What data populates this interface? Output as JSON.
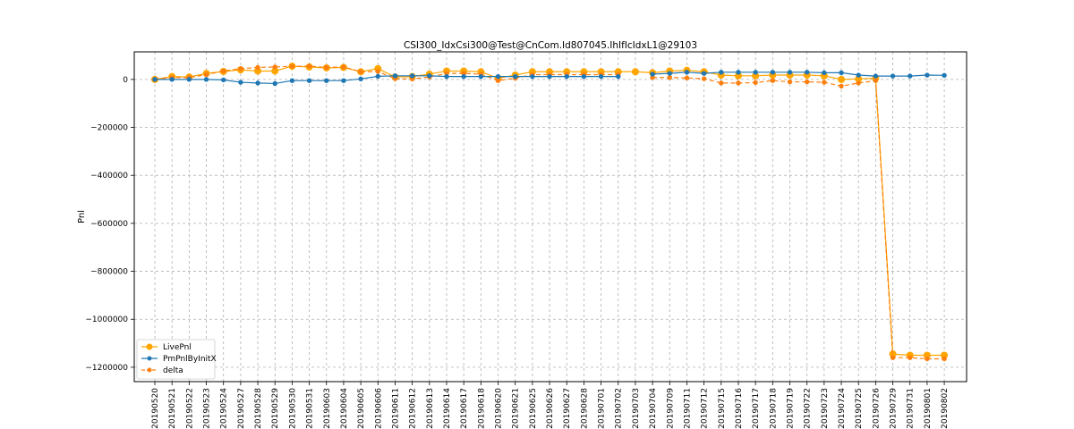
{
  "chart_data": {
    "type": "line",
    "title": "CSI300_IdxCsi300@Test@CnCom.Id807045.IhIfIcIdxL1@29103",
    "xlabel": "",
    "ylabel": "Pnl",
    "ylim": [
      -1260000,
      115000
    ],
    "yticks": [
      0,
      -200000,
      -400000,
      -600000,
      -800000,
      -1000000,
      -1200000
    ],
    "ytick_labels": [
      "0",
      "−200000",
      "−400000",
      "−600000",
      "−800000",
      "−1000000",
      "−1200000"
    ],
    "grid": true,
    "legend_position": "lower-left",
    "categories": [
      "20190520",
      "20190521",
      "20190522",
      "20190523",
      "20190524",
      "20190527",
      "20190528",
      "20190529",
      "20190530",
      "20190531",
      "20190603",
      "20190604",
      "20190605",
      "20190606",
      "20190611",
      "20190612",
      "20190613",
      "20190614",
      "20190617",
      "20190618",
      "20190620",
      "20190621",
      "20190625",
      "20190626",
      "20190627",
      "20190628",
      "20190701",
      "20190702",
      "20190703",
      "20190704",
      "20190709",
      "20190711",
      "20190712",
      "20190715",
      "20190716",
      "20190717",
      "20190718",
      "20190719",
      "20190722",
      "20190723",
      "20190724",
      "20190725",
      "20190726",
      "20190729",
      "20190731",
      "20190801",
      "20190802"
    ],
    "series": [
      {
        "name": "LivePnl",
        "color": "#ffa500",
        "style": "solid",
        "marker": "large-circle",
        "values": [
          0,
          12000,
          10000,
          25000,
          33000,
          40000,
          35000,
          35000,
          55000,
          52000,
          48000,
          50000,
          32000,
          45000,
          10000,
          12000,
          22000,
          35000,
          35000,
          32000,
          5000,
          18000,
          32000,
          32000,
          32000,
          32000,
          32000,
          32000,
          32000,
          28000,
          35000,
          38000,
          32000,
          18000,
          15000,
          15000,
          18000,
          18000,
          18000,
          15000,
          0,
          2000,
          5000,
          -1145000,
          -1150000,
          -1150000,
          -1150000
        ]
      },
      {
        "name": "PmPnlByInitX",
        "color": "#1f77b4",
        "style": "solid",
        "marker": "small-circle",
        "values": [
          0,
          0,
          0,
          0,
          -2000,
          -12000,
          -15000,
          -17000,
          -5000,
          -5000,
          -5000,
          -5000,
          2000,
          13000,
          15000,
          15000,
          15000,
          12000,
          12000,
          12000,
          12000,
          12000,
          12000,
          12000,
          12000,
          12000,
          12000,
          12000,
          null,
          22000,
          25000,
          30000,
          25000,
          30000,
          30000,
          30000,
          30000,
          30000,
          30000,
          28000,
          28000,
          18000,
          14000,
          14000,
          14000,
          18000,
          17000
        ]
      },
      {
        "name": "delta",
        "color": "#ff7f0e",
        "style": "dashed",
        "marker": "small-circle",
        "values": [
          0,
          8000,
          8000,
          20000,
          35000,
          45000,
          50000,
          52000,
          55000,
          55000,
          50000,
          52000,
          32000,
          33000,
          3000,
          2000,
          10000,
          25000,
          25000,
          22000,
          -5000,
          5000,
          20000,
          20000,
          20000,
          20000,
          20000,
          20000,
          null,
          8000,
          8000,
          6000,
          3000,
          -15000,
          -15000,
          -13000,
          -5000,
          -10000,
          -10000,
          -12000,
          -28000,
          -15000,
          -5000,
          -1160000,
          -1160000,
          -1165000,
          -1165000
        ]
      }
    ]
  }
}
